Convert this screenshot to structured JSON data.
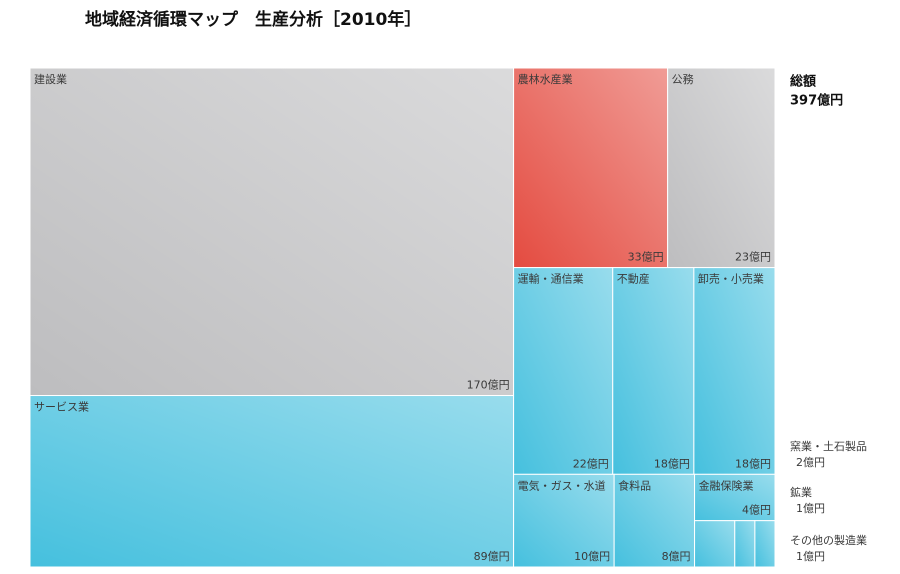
{
  "chart_data": {
    "type": "treemap",
    "title": "地域経済循環マップ　生産分析［2010年］",
    "total": {
      "label": "総額",
      "value": 397,
      "value_label": "397億円"
    },
    "items": [
      {
        "name": "建設業",
        "value": 170,
        "value_label": "170億円",
        "color": "#bdbdbf"
      },
      {
        "name": "サービス業",
        "value": 89,
        "value_label": "89億円",
        "color": "#45c0de"
      },
      {
        "name": "農林水産業",
        "value": 33,
        "value_label": "33億円",
        "color": "#e44b40"
      },
      {
        "name": "公務",
        "value": 23,
        "value_label": "23億円",
        "color": "#bdbdbf"
      },
      {
        "name": "運輸・通信業",
        "value": 22,
        "value_label": "22億円",
        "color": "#45c0de"
      },
      {
        "name": "不動産",
        "value": 18,
        "value_label": "18億円",
        "color": "#45c0de"
      },
      {
        "name": "卸売・小売業",
        "value": 18,
        "value_label": "18億円",
        "color": "#45c0de"
      },
      {
        "name": "電気・ガス・水道",
        "value": 10,
        "value_label": "10億円",
        "color": "#45c0de"
      },
      {
        "name": "食料品",
        "value": 8,
        "value_label": "8億円",
        "color": "#45c0de"
      },
      {
        "name": "金融保険業",
        "value": 4,
        "value_label": "4億円",
        "color": "#45c0de"
      },
      {
        "name": "窯業・土石製品",
        "value": 2,
        "value_label": "2億円",
        "color": "#45c0de"
      },
      {
        "name": "鉱業",
        "value": 1,
        "value_label": "1億円",
        "color": "#45c0de"
      },
      {
        "name": "その他の製造業",
        "value": 1,
        "value_label": "1億円",
        "color": "#45c0de"
      }
    ]
  }
}
